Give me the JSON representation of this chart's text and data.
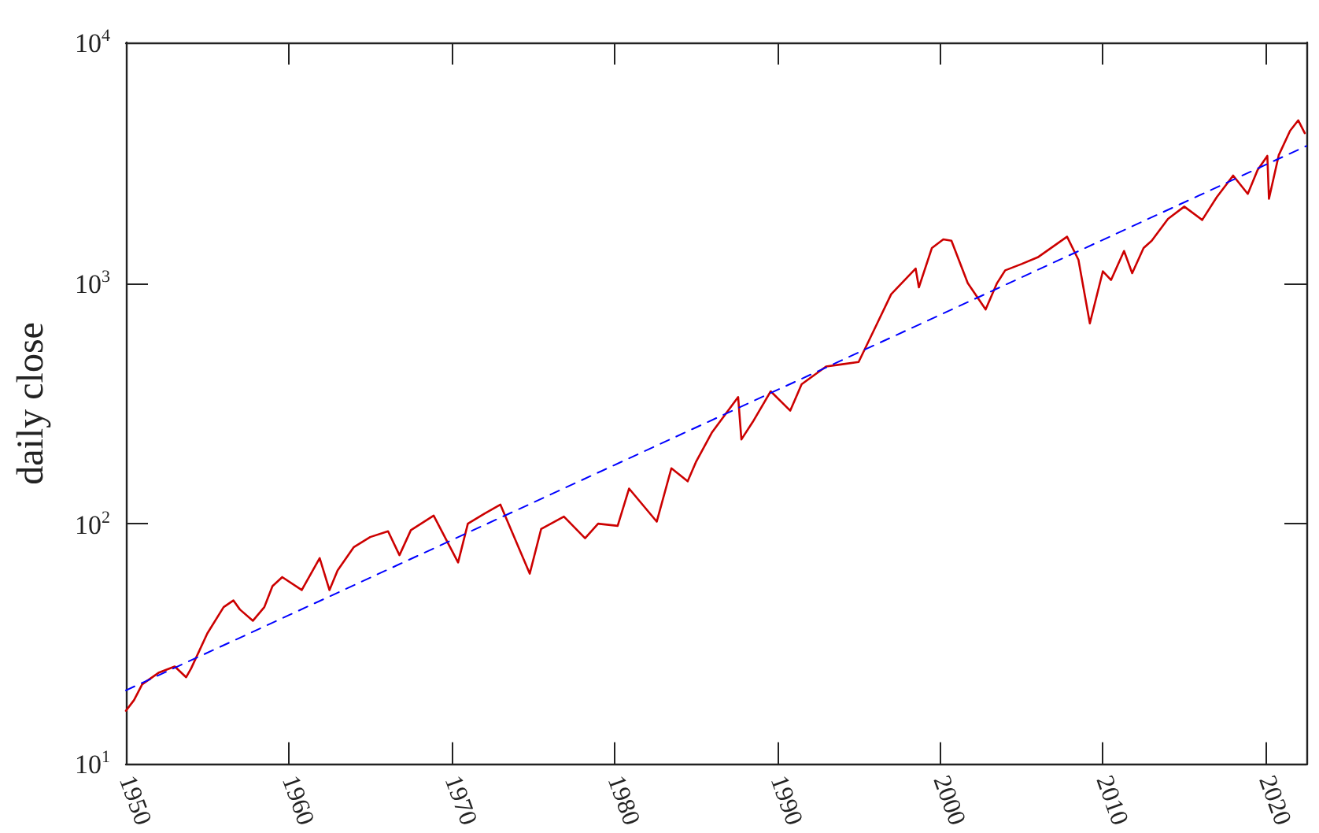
{
  "chart_data": {
    "type": "line",
    "ylabel": "daily close",
    "log": "y",
    "grid": false,
    "marker": "none",
    "xlim": [
      1950,
      2022.5
    ],
    "xticks": [
      1950,
      1960,
      1970,
      1980,
      1990,
      2000,
      2010,
      2020
    ],
    "ylim": [
      10,
      10000
    ],
    "yticks": [
      {
        "value": 10,
        "label": "10$^{1}$"
      },
      {
        "value": 100,
        "label": "10$^{2}$"
      },
      {
        "value": 1000,
        "label": "10$^{3}$"
      },
      {
        "value": 10000,
        "label": "10$^{4}$"
      }
    ],
    "series": [
      {
        "color": "#cc0000",
        "line_style": "solid",
        "x": [
          1950.0,
          1950.5,
          1951,
          1952,
          1953,
          1953.7,
          1954,
          1955,
          1956,
          1956.6,
          1957,
          1957.8,
          1958.5,
          1959,
          1959.6,
          1960.8,
          1961.9,
          1962.5,
          1963,
          1964,
          1965,
          1966.1,
          1966.8,
          1967.5,
          1968.9,
          1970.4,
          1971,
          1972,
          1973,
          1974.8,
          1975.5,
          1976.9,
          1978.2,
          1979,
          1980.2,
          1980.9,
          1982.6,
          1983.5,
          1984.5,
          1985,
          1986,
          1987.6,
          1987.8,
          1988.5,
          1989.6,
          1990.8,
          1991.5,
          1993,
          1994,
          1995,
          1996,
          1997,
          1998.5,
          1998.7,
          1999.5,
          2000.2,
          2000.7,
          2001.7,
          2002.8,
          2003.5,
          2004,
          2005,
          2006,
          2007.8,
          2008.5,
          2009.2,
          2010,
          2010.5,
          2011.3,
          2011.8,
          2012.5,
          2013,
          2014,
          2015,
          2016.1,
          2017,
          2018,
          2018.9,
          2019.5,
          2020.1,
          2020.2,
          2020.8,
          2021.5,
          2022,
          2022.4
        ],
        "values": [
          16.7,
          18.5,
          21.5,
          24,
          25.5,
          23,
          25,
          35,
          45,
          48,
          44,
          39.5,
          45,
          55,
          60,
          53,
          72,
          53,
          64,
          80,
          88,
          93,
          74,
          94,
          108,
          69,
          100,
          110,
          120,
          62,
          95,
          107,
          87,
          100,
          98,
          140,
          102,
          170,
          150,
          180,
          240,
          336,
          224,
          265,
          355,
          295,
          380,
          450,
          460,
          470,
          650,
          900,
          1150,
          960,
          1400,
          1520,
          1500,
          1000,
          777,
          1000,
          1130,
          1200,
          1280,
          1560,
          1250,
          680,
          1120,
          1030,
          1360,
          1100,
          1400,
          1500,
          1850,
          2080,
          1830,
          2280,
          2800,
          2350,
          2950,
          3380,
          2240,
          3400,
          4300,
          4750,
          4200
        ]
      },
      {
        "color": "#0000ff",
        "line_style": "dashed",
        "x": [
          1950,
          2022.5
        ],
        "values": [
          20.3,
          3715
        ]
      }
    ]
  }
}
